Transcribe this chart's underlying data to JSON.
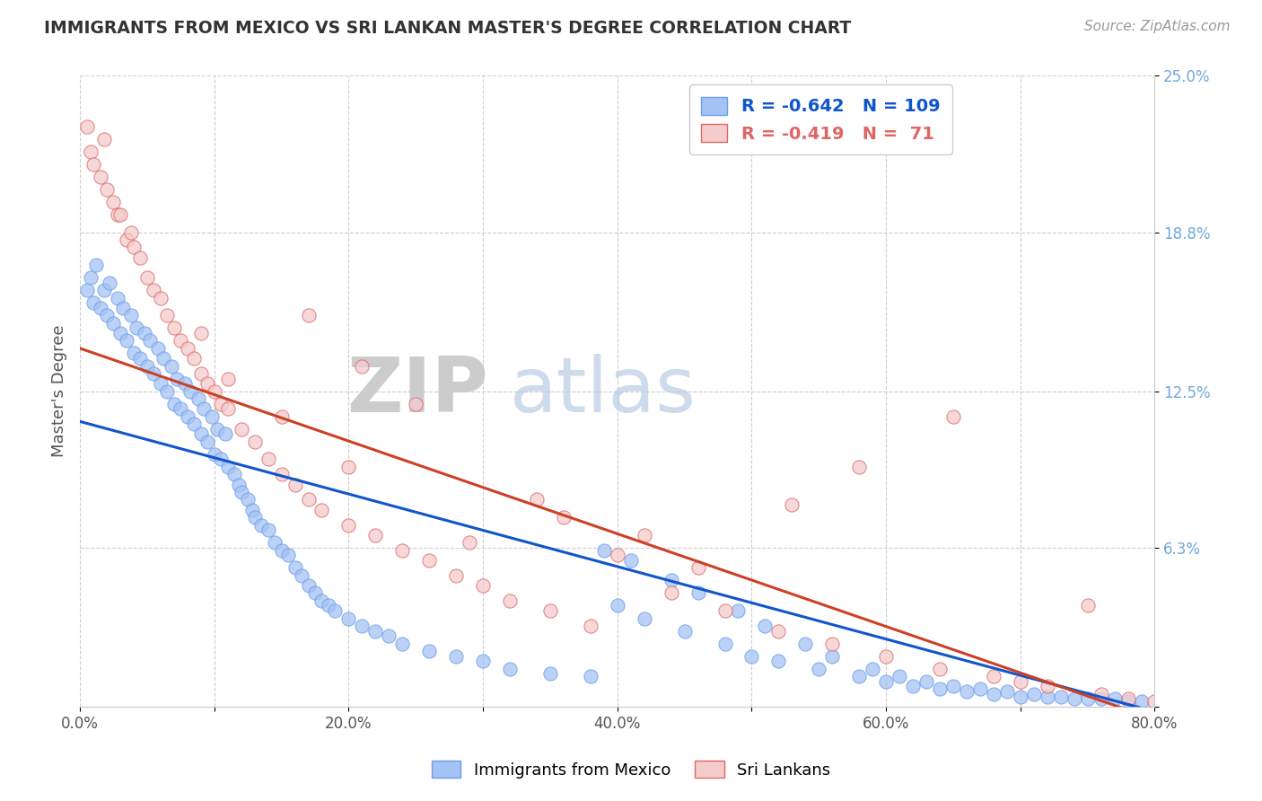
{
  "title": "IMMIGRANTS FROM MEXICO VS SRI LANKAN MASTER'S DEGREE CORRELATION CHART",
  "source_text": "Source: ZipAtlas.com",
  "ylabel": "Master's Degree",
  "watermark_zip": "ZIP",
  "watermark_atlas": "atlas",
  "xmin": 0.0,
  "xmax": 0.8,
  "ymin": 0.0,
  "ymax": 0.25,
  "yticks": [
    0.0,
    0.063,
    0.125,
    0.188,
    0.25
  ],
  "ytick_labels": [
    "",
    "6.3%",
    "12.5%",
    "18.8%",
    "25.0%"
  ],
  "xticks": [
    0.0,
    0.1,
    0.2,
    0.3,
    0.4,
    0.5,
    0.6,
    0.7,
    0.8
  ],
  "xtick_labels": [
    "0.0%",
    "",
    "20.0%",
    "",
    "40.0%",
    "",
    "60.0%",
    "",
    "80.0%"
  ],
  "blue_color": "#a4c2f4",
  "pink_color": "#f4cccc",
  "blue_edge_color": "#6d9eeb",
  "pink_edge_color": "#e06666",
  "blue_line_color": "#1155cc",
  "pink_line_color": "#cc4125",
  "legend_r_blue": "-0.642",
  "legend_n_blue": "109",
  "legend_r_pink": "-0.419",
  "legend_n_pink": " 71",
  "legend_label_blue": "Immigrants from Mexico",
  "legend_label_pink": "Sri Lankans",
  "blue_scatter_x": [
    0.005,
    0.008,
    0.01,
    0.012,
    0.015,
    0.018,
    0.02,
    0.022,
    0.025,
    0.028,
    0.03,
    0.032,
    0.035,
    0.038,
    0.04,
    0.042,
    0.045,
    0.048,
    0.05,
    0.052,
    0.055,
    0.058,
    0.06,
    0.062,
    0.065,
    0.068,
    0.07,
    0.072,
    0.075,
    0.078,
    0.08,
    0.082,
    0.085,
    0.088,
    0.09,
    0.092,
    0.095,
    0.098,
    0.1,
    0.102,
    0.105,
    0.108,
    0.11,
    0.115,
    0.118,
    0.12,
    0.125,
    0.128,
    0.13,
    0.135,
    0.14,
    0.145,
    0.15,
    0.155,
    0.16,
    0.165,
    0.17,
    0.175,
    0.18,
    0.185,
    0.19,
    0.2,
    0.21,
    0.22,
    0.23,
    0.24,
    0.26,
    0.28,
    0.3,
    0.32,
    0.35,
    0.38,
    0.4,
    0.42,
    0.45,
    0.48,
    0.5,
    0.52,
    0.55,
    0.58,
    0.6,
    0.62,
    0.64,
    0.66,
    0.68,
    0.7,
    0.72,
    0.74,
    0.76,
    0.78,
    0.39,
    0.41,
    0.44,
    0.46,
    0.49,
    0.51,
    0.54,
    0.56,
    0.59,
    0.61,
    0.63,
    0.65,
    0.67,
    0.69,
    0.71,
    0.73,
    0.75,
    0.77,
    0.79
  ],
  "blue_scatter_y": [
    0.165,
    0.17,
    0.16,
    0.175,
    0.158,
    0.165,
    0.155,
    0.168,
    0.152,
    0.162,
    0.148,
    0.158,
    0.145,
    0.155,
    0.14,
    0.15,
    0.138,
    0.148,
    0.135,
    0.145,
    0.132,
    0.142,
    0.128,
    0.138,
    0.125,
    0.135,
    0.12,
    0.13,
    0.118,
    0.128,
    0.115,
    0.125,
    0.112,
    0.122,
    0.108,
    0.118,
    0.105,
    0.115,
    0.1,
    0.11,
    0.098,
    0.108,
    0.095,
    0.092,
    0.088,
    0.085,
    0.082,
    0.078,
    0.075,
    0.072,
    0.07,
    0.065,
    0.062,
    0.06,
    0.055,
    0.052,
    0.048,
    0.045,
    0.042,
    0.04,
    0.038,
    0.035,
    0.032,
    0.03,
    0.028,
    0.025,
    0.022,
    0.02,
    0.018,
    0.015,
    0.013,
    0.012,
    0.04,
    0.035,
    0.03,
    0.025,
    0.02,
    0.018,
    0.015,
    0.012,
    0.01,
    0.008,
    0.007,
    0.006,
    0.005,
    0.004,
    0.004,
    0.003,
    0.003,
    0.002,
    0.062,
    0.058,
    0.05,
    0.045,
    0.038,
    0.032,
    0.025,
    0.02,
    0.015,
    0.012,
    0.01,
    0.008,
    0.007,
    0.006,
    0.005,
    0.004,
    0.003,
    0.003,
    0.002
  ],
  "pink_scatter_x": [
    0.005,
    0.008,
    0.01,
    0.015,
    0.018,
    0.02,
    0.025,
    0.028,
    0.03,
    0.035,
    0.038,
    0.04,
    0.045,
    0.05,
    0.055,
    0.06,
    0.065,
    0.07,
    0.075,
    0.08,
    0.085,
    0.09,
    0.095,
    0.1,
    0.105,
    0.11,
    0.12,
    0.13,
    0.14,
    0.15,
    0.16,
    0.17,
    0.18,
    0.2,
    0.22,
    0.24,
    0.26,
    0.28,
    0.3,
    0.32,
    0.2,
    0.15,
    0.11,
    0.09,
    0.35,
    0.38,
    0.4,
    0.44,
    0.48,
    0.52,
    0.56,
    0.6,
    0.64,
    0.68,
    0.72,
    0.76,
    0.78,
    0.8,
    0.75,
    0.7,
    0.65,
    0.58,
    0.53,
    0.46,
    0.42,
    0.36,
    0.34,
    0.29,
    0.25,
    0.21,
    0.17
  ],
  "pink_scatter_y": [
    0.23,
    0.22,
    0.215,
    0.21,
    0.225,
    0.205,
    0.2,
    0.195,
    0.195,
    0.185,
    0.188,
    0.182,
    0.178,
    0.17,
    0.165,
    0.162,
    0.155,
    0.15,
    0.145,
    0.142,
    0.138,
    0.132,
    0.128,
    0.125,
    0.12,
    0.118,
    0.11,
    0.105,
    0.098,
    0.092,
    0.088,
    0.082,
    0.078,
    0.072,
    0.068,
    0.062,
    0.058,
    0.052,
    0.048,
    0.042,
    0.095,
    0.115,
    0.13,
    0.148,
    0.038,
    0.032,
    0.06,
    0.045,
    0.038,
    0.03,
    0.025,
    0.02,
    0.015,
    0.012,
    0.008,
    0.005,
    0.003,
    0.002,
    0.04,
    0.01,
    0.115,
    0.095,
    0.08,
    0.055,
    0.068,
    0.075,
    0.082,
    0.065,
    0.12,
    0.135,
    0.155
  ],
  "blue_line_x": [
    0.0,
    0.8
  ],
  "blue_line_y": [
    0.113,
    -0.002
  ],
  "pink_line_x": [
    0.0,
    0.8
  ],
  "pink_line_y": [
    0.142,
    -0.005
  ]
}
